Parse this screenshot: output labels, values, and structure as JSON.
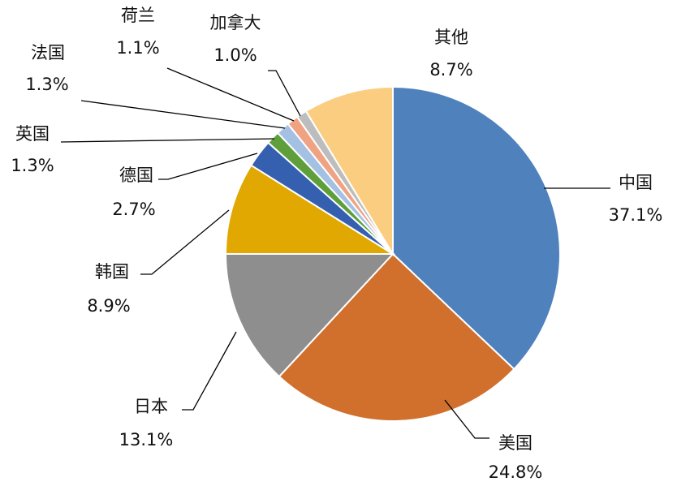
{
  "chart_data": {
    "type": "pie",
    "title": "",
    "unit": "%",
    "start": "top",
    "direction": "clockwise",
    "slices": [
      {
        "name": "中国",
        "value": 37.1,
        "label": "37.1%",
        "color": "#4F81BD"
      },
      {
        "name": "美国",
        "value": 24.8,
        "label": "24.8%",
        "color": "#D0702C"
      },
      {
        "name": "日本",
        "value": 13.1,
        "label": "13.1%",
        "color": "#8E8E8E"
      },
      {
        "name": "韩国",
        "value": 8.9,
        "label": "8.9%",
        "color": "#E0A800"
      },
      {
        "name": "德国",
        "value": 2.7,
        "label": "2.7%",
        "color": "#3560B0"
      },
      {
        "name": "英国",
        "value": 1.3,
        "label": "1.3%",
        "color": "#5E9E3B"
      },
      {
        "name": "法国",
        "value": 1.3,
        "label": "1.3%",
        "color": "#A4C1E4"
      },
      {
        "name": "荷兰",
        "value": 1.1,
        "label": "1.1%",
        "color": "#EFA383"
      },
      {
        "name": "加拿大",
        "value": 1.0,
        "label": "1.0%",
        "color": "#BDBDBD"
      },
      {
        "name": "其他",
        "value": 8.7,
        "label": "8.7%",
        "color": "#FBCD80"
      }
    ]
  }
}
